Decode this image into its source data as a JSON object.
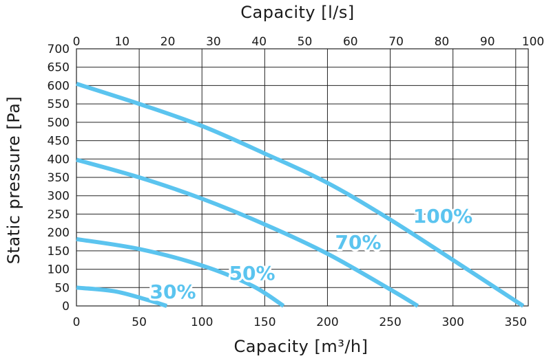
{
  "chart_data": {
    "type": "line",
    "title": "",
    "xlabel": "Capacity [m³/h]",
    "x2label": "Capacity [l/s]",
    "ylabel": "Static pressure [Pa]",
    "xlim": [
      0,
      360
    ],
    "x2lim": [
      0,
      100
    ],
    "ylim": [
      0,
      700
    ],
    "xticks": [
      0,
      50,
      100,
      150,
      200,
      250,
      300,
      350
    ],
    "x2ticks": [
      0,
      10,
      20,
      30,
      40,
      50,
      60,
      70,
      80,
      90,
      100
    ],
    "yticks": [
      0,
      50,
      100,
      150,
      200,
      250,
      300,
      350,
      400,
      450,
      500,
      550,
      600,
      650,
      700
    ],
    "grid": true,
    "line_color": "#5bc4ef",
    "series": [
      {
        "name": "100%",
        "points": [
          [
            0,
            605
          ],
          [
            50,
            550
          ],
          [
            100,
            490
          ],
          [
            150,
            415
          ],
          [
            200,
            335
          ],
          [
            250,
            235
          ],
          [
            300,
            125
          ],
          [
            356,
            0
          ]
        ]
      },
      {
        "name": "70%",
        "points": [
          [
            0,
            398
          ],
          [
            50,
            350
          ],
          [
            100,
            292
          ],
          [
            150,
            222
          ],
          [
            200,
            142
          ],
          [
            250,
            45
          ],
          [
            272,
            0
          ]
        ]
      },
      {
        "name": "50%",
        "points": [
          [
            0,
            182
          ],
          [
            50,
            155
          ],
          [
            100,
            110
          ],
          [
            140,
            55
          ],
          [
            165,
            0
          ]
        ]
      },
      {
        "name": "30%",
        "points": [
          [
            0,
            50
          ],
          [
            30,
            40
          ],
          [
            55,
            18
          ],
          [
            72,
            0
          ]
        ]
      }
    ]
  }
}
